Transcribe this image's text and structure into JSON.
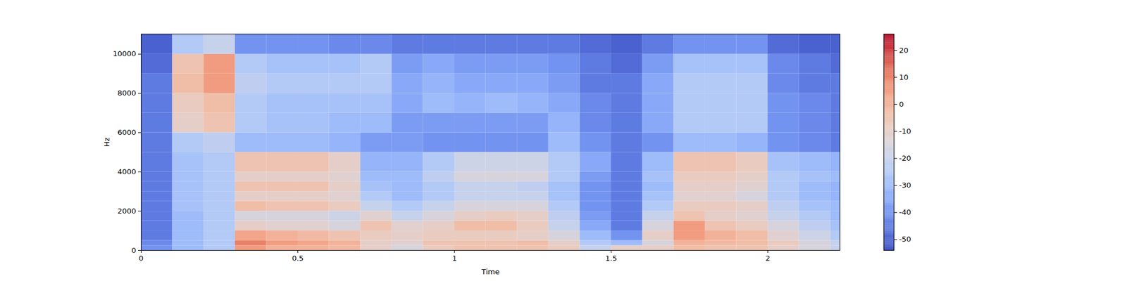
{
  "chart_data": {
    "type": "heatmap",
    "xlabel": "Time",
    "ylabel": "Hz",
    "color": "coolwarm",
    "xlim": [
      0,
      2.23
    ],
    "ylim": [
      0,
      11025
    ],
    "xticks": [
      0,
      0.5,
      1,
      1.5,
      2
    ],
    "yticks": [
      0,
      2000,
      4000,
      6000,
      8000,
      10000
    ],
    "cells": {
      "x_edges": [
        0,
        0.1,
        0.2,
        0.3,
        0.4,
        0.5,
        0.6,
        0.7,
        0.8,
        0.9,
        1.0,
        1.1,
        1.2,
        1.3,
        1.4,
        1.5,
        1.6,
        1.7,
        1.8,
        1.9,
        2.0,
        2.1,
        2.2,
        2.23
      ],
      "y_edges": [
        0,
        250,
        500,
        1000,
        1500,
        2000,
        2500,
        3000,
        3500,
        4000,
        5000,
        6000,
        7000,
        8000,
        9000,
        10000,
        11025
      ],
      "values": [
        [
          -40,
          -30,
          -25,
          5,
          0,
          0,
          -2,
          -10,
          -15,
          -8,
          -5,
          -5,
          -5,
          -8,
          -20,
          -10,
          -10,
          -3,
          -5,
          -5,
          -10,
          -15,
          -20
        ],
        [
          -42,
          -30,
          -25,
          10,
          5,
          3,
          0,
          -10,
          -12,
          -5,
          -5,
          -5,
          -3,
          -10,
          -25,
          -30,
          -15,
          0,
          -2,
          -3,
          -8,
          -15,
          -20
        ],
        [
          -45,
          -30,
          -25,
          3,
          0,
          -2,
          -5,
          -8,
          -10,
          -8,
          -8,
          -8,
          -10,
          -15,
          -30,
          -40,
          -10,
          5,
          0,
          -3,
          -12,
          -18,
          -25
        ],
        [
          -45,
          -30,
          -25,
          -10,
          -12,
          -12,
          -15,
          -5,
          -12,
          -10,
          -3,
          -3,
          -8,
          -20,
          -35,
          -45,
          -15,
          5,
          -5,
          -8,
          -15,
          -22,
          -28
        ],
        [
          -45,
          -30,
          -25,
          -15,
          -15,
          -15,
          -18,
          -12,
          -20,
          -15,
          -10,
          -8,
          -10,
          -22,
          -38,
          -45,
          -20,
          -5,
          -10,
          -12,
          -20,
          -25,
          -30
        ],
        [
          -45,
          -28,
          -25,
          -3,
          -5,
          -5,
          -8,
          -20,
          -25,
          -20,
          -15,
          -15,
          -15,
          -25,
          -40,
          -45,
          -25,
          -8,
          -8,
          -10,
          -22,
          -28,
          -30
        ],
        [
          -45,
          -28,
          -25,
          -10,
          -10,
          -10,
          -12,
          -25,
          -30,
          -25,
          -20,
          -20,
          -20,
          -28,
          -40,
          -45,
          -28,
          -12,
          -12,
          -15,
          -25,
          -30,
          -32
        ],
        [
          -45,
          -28,
          -25,
          -5,
          -5,
          -5,
          -10,
          -28,
          -30,
          -25,
          -20,
          -20,
          -22,
          -28,
          -40,
          -45,
          -30,
          -10,
          -10,
          -12,
          -25,
          -30,
          -32
        ],
        [
          -45,
          -28,
          -25,
          -10,
          -10,
          -10,
          -12,
          -30,
          -30,
          -22,
          -15,
          -15,
          -15,
          -25,
          -38,
          -45,
          -28,
          -8,
          -8,
          -10,
          -25,
          -28,
          -30
        ],
        [
          -45,
          -28,
          -25,
          -5,
          -5,
          -5,
          -10,
          -32,
          -32,
          -25,
          -18,
          -18,
          -18,
          -25,
          -35,
          -45,
          -30,
          -5,
          -5,
          -8,
          -28,
          -30,
          -32
        ],
        [
          -45,
          -25,
          -22,
          -30,
          -30,
          -30,
          -32,
          -38,
          -38,
          -40,
          -40,
          -40,
          -40,
          -30,
          -40,
          -45,
          -40,
          -30,
          -30,
          -32,
          -40,
          -42,
          -45
        ],
        [
          -45,
          -10,
          -5,
          -25,
          -28,
          -28,
          -30,
          -30,
          -38,
          -38,
          -38,
          -38,
          -38,
          -32,
          -42,
          -45,
          -35,
          -25,
          -25,
          -25,
          -40,
          -42,
          -45
        ],
        [
          -45,
          -8,
          -3,
          -25,
          -28,
          -28,
          -28,
          -28,
          -35,
          -30,
          -32,
          -30,
          -32,
          -35,
          -42,
          -45,
          -35,
          -25,
          -25,
          -25,
          -40,
          -42,
          -45
        ],
        [
          -45,
          -3,
          5,
          -22,
          -25,
          -25,
          -25,
          -25,
          -35,
          -32,
          -35,
          -35,
          -35,
          -38,
          -45,
          -45,
          -35,
          -25,
          -25,
          -25,
          -42,
          -45,
          -45
        ],
        [
          -48,
          -5,
          5,
          -25,
          -28,
          -28,
          -28,
          -25,
          -38,
          -35,
          -38,
          -38,
          -38,
          -40,
          -45,
          -48,
          -38,
          -28,
          -28,
          -28,
          -42,
          -45,
          -48
        ],
        [
          -50,
          -25,
          -20,
          -40,
          -40,
          -40,
          -42,
          -42,
          -45,
          -45,
          -45,
          -45,
          -45,
          -45,
          -48,
          -50,
          -45,
          -40,
          -40,
          -40,
          -48,
          -50,
          -50
        ]
      ]
    },
    "colorbar": {
      "range": [
        -54,
        26
      ],
      "ticks": [
        -50,
        -40,
        -30,
        -20,
        -10,
        0,
        10,
        20
      ]
    }
  }
}
